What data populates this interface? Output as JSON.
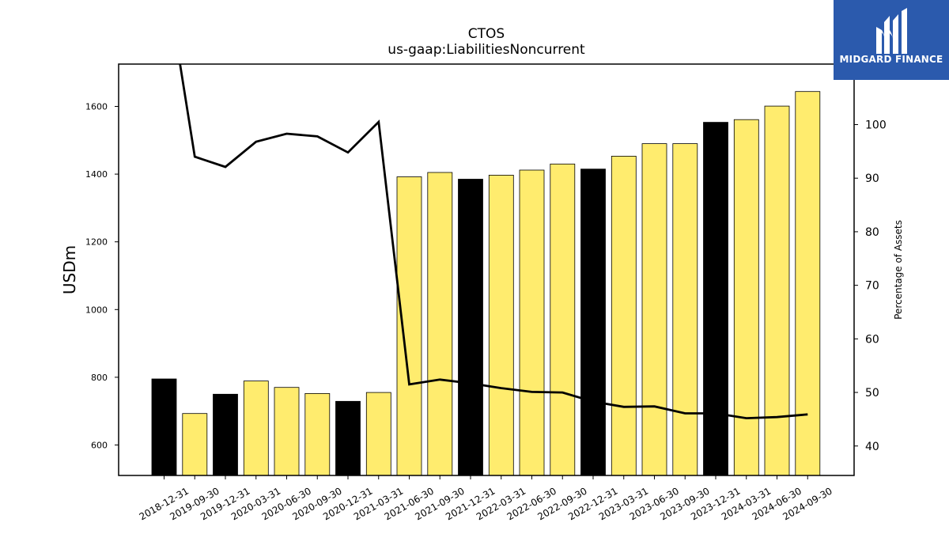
{
  "chart_data": {
    "type": "bar",
    "title": "CTOS",
    "subtitle": "us-gaap:LiabilitiesNoncurrent",
    "ylabel": "USDm",
    "y2label": "Percentage of Assets",
    "ylim": [
      510,
      1725
    ],
    "y2lim": [
      34.5,
      111.3
    ],
    "yticks": [
      600,
      800,
      1000,
      1200,
      1400,
      1600
    ],
    "y2ticks": [
      40,
      50,
      60,
      70,
      80,
      90,
      100
    ],
    "categories": [
      "2018-12-31",
      "2019-09-30",
      "2019-12-31",
      "2020-03-31",
      "2020-06-30",
      "2020-09-30",
      "2020-12-31",
      "2021-03-31",
      "2021-06-30",
      "2021-09-30",
      "2021-12-31",
      "2022-03-31",
      "2022-06-30",
      "2022-09-30",
      "2022-12-31",
      "2023-03-31",
      "2023-06-30",
      "2023-09-30",
      "2023-12-31",
      "2024-03-31",
      "2024-06-30",
      "2024-09-30"
    ],
    "values": [
      795,
      693,
      750,
      789,
      770,
      752,
      729,
      755,
      1392,
      1405,
      1385,
      1397,
      1412,
      1430,
      1415,
      1453,
      1490,
      1490,
      1553,
      1561,
      1601,
      1644
    ],
    "bar_colors": [
      "#000000",
      "#ffec6e",
      "#000000",
      "#ffec6e",
      "#ffec6e",
      "#ffec6e",
      "#000000",
      "#ffec6e",
      "#ffec6e",
      "#ffec6e",
      "#000000",
      "#ffec6e",
      "#ffec6e",
      "#ffec6e",
      "#000000",
      "#ffec6e",
      "#ffec6e",
      "#ffec6e",
      "#000000",
      "#ffec6e",
      "#ffec6e",
      "#ffec6e"
    ],
    "line_series": {
      "axis": "right",
      "color": "#000000",
      "values": [
        130,
        94,
        92.1,
        96.8,
        98.3,
        97.8,
        94.8,
        100.5,
        51.5,
        52.4,
        51.7,
        50.8,
        50.1,
        50.0,
        48.3,
        47.3,
        47.4,
        46.1,
        46.1,
        45.2,
        45.4,
        45.9
      ]
    },
    "grid": false
  },
  "logo": {
    "text": "MIDGARD FINANCE",
    "background": "#2b5aad"
  }
}
